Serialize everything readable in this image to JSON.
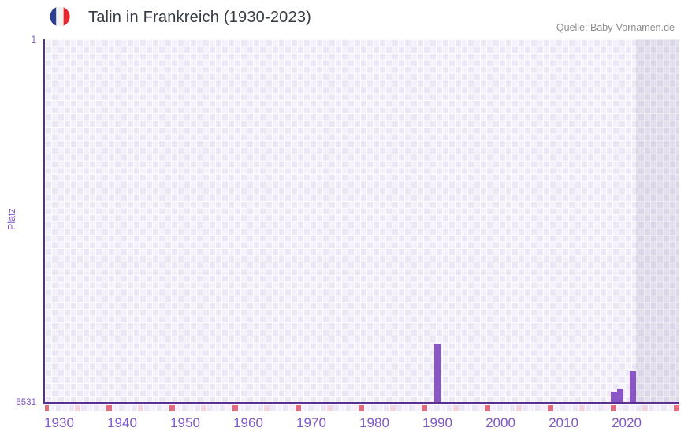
{
  "header": {
    "title": "Talin in Frankreich (1930-2023)",
    "flag_icon": "france-flag-icon",
    "source": "Quelle: Baby-Vornamen.de"
  },
  "chart_data": {
    "type": "bar",
    "title": "Talin in Frankreich (1930-2023)",
    "source": "Quelle: Baby-Vornamen.de",
    "xlabel": "",
    "ylabel": "Platz",
    "y_axis": {
      "min": 1,
      "max": 5531,
      "top_label": "1",
      "bottom_label": "5531",
      "inverted": true
    },
    "x_range": [
      1928,
      2028
    ],
    "x_ticks": [
      1930,
      1940,
      1950,
      1960,
      1970,
      1980,
      1990,
      2000,
      2010,
      2020
    ],
    "bars": [
      {
        "year": 1990,
        "rank": 4620
      },
      {
        "year": 2018,
        "rank": 5355
      },
      {
        "year": 2019,
        "rank": 5305
      },
      {
        "year": 2021,
        "rank": 5035
      }
    ],
    "no_data_band_start_year": 2022,
    "marker_strip": {
      "red_anchor_year": 1928,
      "pink_anchor_year": 1933,
      "interval_years": 10
    },
    "legend": "none",
    "grid": "checkerboard",
    "colors": {
      "bar": "#8a56c6",
      "axis_line": "#5b2e91",
      "tick_label": "#7e57c5",
      "grid_cell_light": "#f4f1fb",
      "grid_cell_dark": "#ece7f6",
      "grid_line": "#ffffff",
      "marker_red": "#e06c7c",
      "marker_pink": "#f3d3de",
      "title_text": "#363c44",
      "source_text": "#8d8d8d",
      "flag_blue": "#2c3f93",
      "flag_white": "#f2f2f0",
      "flag_red": "#e8252f"
    }
  }
}
